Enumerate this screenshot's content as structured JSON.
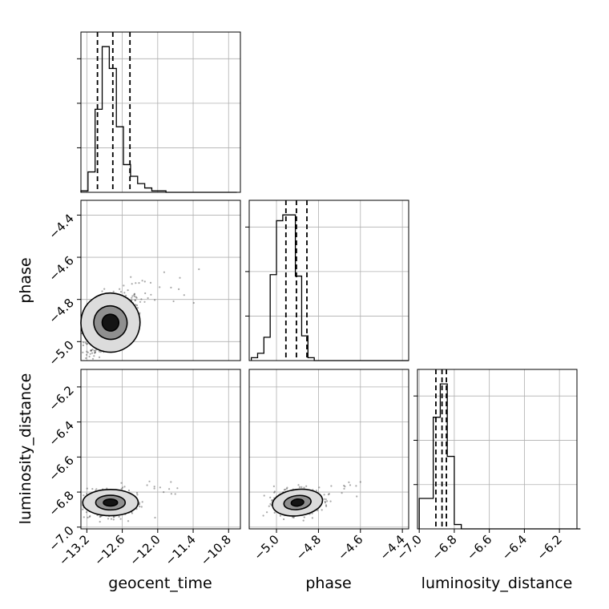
{
  "chart_data": {
    "type": "corner",
    "parameters": [
      "geocent_time",
      "phase",
      "luminosity_distance"
    ],
    "axes": {
      "geocent_time": {
        "range": [
          -13.3,
          -10.6
        ],
        "ticks": [
          -13.2,
          -12.6,
          -12.0,
          -11.4,
          -10.8
        ],
        "tick_labels": [
          "−13.2",
          "−12.6",
          "−12.0",
          "−11.4",
          "−10.8"
        ]
      },
      "phase": {
        "range": [
          -5.13,
          -4.37
        ],
        "ticks": [
          -5.0,
          -4.8,
          -4.6,
          -4.4
        ],
        "tick_labels": [
          "−5.0",
          "−4.8",
          "−4.6",
          "−4.4"
        ]
      },
      "phase_y": {
        "range": [
          -5.09,
          -4.33
        ],
        "ticks": [
          -5.0,
          -4.8,
          -4.6,
          -4.4
        ],
        "tick_labels": [
          "−5.0",
          "−4.8",
          "−4.6",
          "−4.4"
        ]
      },
      "luminosity_distance": {
        "range": [
          -7.01,
          -6.1
        ],
        "ticks": [
          -7.0,
          -6.8,
          -6.6,
          -6.4,
          -6.2
        ],
        "tick_labels": [
          "−7.0",
          "−6.8",
          "−6.6",
          "−6.4",
          "−6.2"
        ]
      }
    },
    "histograms": [
      {
        "parameter": "geocent_time",
        "bin_start": -13.3,
        "bin_width": 0.12,
        "counts": [
          1,
          14,
          57,
          100,
          85,
          45,
          19,
          11,
          6,
          3,
          1,
          1,
          0,
          0,
          0,
          0,
          0,
          0,
          0,
          0,
          0,
          0
        ],
        "ymax": 110,
        "quantiles": [
          -13.02,
          -12.76,
          -12.47
        ]
      },
      {
        "parameter": "phase",
        "bin_start": -5.12,
        "bin_width": 0.03,
        "counts": [
          2,
          5,
          16,
          59,
          96,
          100,
          100,
          58,
          17,
          2,
          0,
          0,
          0,
          0,
          0,
          0,
          0,
          0,
          0,
          0,
          0,
          0,
          0,
          0,
          0
        ],
        "ymax": 110,
        "quantiles": [
          -4.955,
          -4.905,
          -4.855
        ]
      },
      {
        "parameter": "luminosity_distance",
        "bin_start": -7.0,
        "bin_width": 0.04,
        "counts": [
          21,
          21,
          77,
          100,
          50,
          3,
          0,
          0,
          0,
          0,
          0,
          0,
          0,
          0,
          0,
          0,
          0,
          0,
          0,
          0,
          0,
          0,
          0
        ],
        "ymax": 110,
        "quantiles": [
          -6.905,
          -6.87,
          -6.845
        ]
      }
    ],
    "scatter_panels": [
      {
        "x": "geocent_time",
        "y": "phase",
        "center": [
          -12.8,
          -4.91
        ],
        "spread": [
          0.25,
          0.07
        ],
        "correlation": 0.55,
        "contour_levels": [
          {
            "rx": 0.14,
            "ry": 0.04,
            "fill": "#141414"
          },
          {
            "rx": 0.28,
            "ry": 0.08,
            "fill": "#8f8f8f"
          },
          {
            "rx": 0.5,
            "ry": 0.14,
            "fill": "#dcdcdc"
          }
        ]
      },
      {
        "x": "geocent_time",
        "y": "luminosity_distance",
        "center": [
          -12.8,
          -6.86
        ],
        "spread": [
          0.22,
          0.035
        ],
        "correlation": 0.0,
        "contour_levels": [
          {
            "rx": 0.12,
            "ry": 0.02,
            "fill": "#141414"
          },
          {
            "rx": 0.25,
            "ry": 0.042,
            "fill": "#8f8f8f"
          },
          {
            "rx": 0.47,
            "ry": 0.075,
            "fill": "#dcdcdc"
          }
        ]
      },
      {
        "x": "phase",
        "y": "luminosity_distance",
        "center": [
          -4.9,
          -6.86
        ],
        "spread": [
          0.055,
          0.035
        ],
        "correlation": 0.1,
        "contour_levels": [
          {
            "rx": 0.03,
            "ry": 0.02,
            "fill": "#141414"
          },
          {
            "rx": 0.065,
            "ry": 0.04,
            "fill": "#8f8f8f"
          },
          {
            "rx": 0.12,
            "ry": 0.075,
            "fill": "#dcdcdc"
          }
        ]
      }
    ],
    "grid": true
  },
  "colors": {
    "axis": "#000000",
    "grid": "#b0b0b0",
    "points": "#404040",
    "line": "#000000"
  }
}
